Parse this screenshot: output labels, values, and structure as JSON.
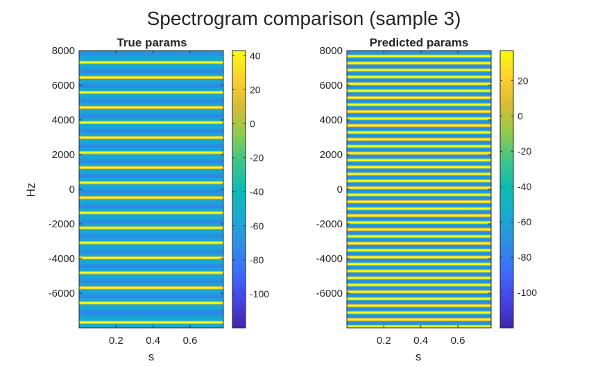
{
  "figure": {
    "title": "Spectrogram comparison (sample 3)"
  },
  "colormap": [
    "#3e26a8",
    "#4743e8",
    "#3d6bfb",
    "#2f8de4",
    "#1aaad0",
    "#0cbcb4",
    "#3cc58b",
    "#8dca4f",
    "#d8bb35",
    "#fbd02f",
    "#f9fb0e"
  ],
  "chart_data": [
    {
      "type": "heatmap",
      "title": "True params",
      "xlabel": "s",
      "ylabel": "Hz",
      "xlim": [
        0,
        0.78
      ],
      "ylim": [
        -8000,
        8000
      ],
      "xticks": [
        0.2,
        0.4,
        0.6
      ],
      "yticks": [
        -6000,
        -4000,
        -2000,
        0,
        2000,
        4000,
        6000,
        8000
      ],
      "harmonic_frequencies_hz": [
        -7680,
        -6560,
        -5690,
        -4820,
        -3960,
        -3090,
        -2230,
        -1360,
        -490,
        380,
        1250,
        2110,
        2980,
        3850,
        4720,
        5590,
        6450,
        7320
      ],
      "colorbar": {
        "clim": [
          -120,
          43
        ],
        "ticks": [
          -100,
          -80,
          -60,
          -40,
          -20,
          0,
          20,
          40
        ]
      }
    },
    {
      "type": "heatmap",
      "title": "Predicted params",
      "xlabel": "s",
      "ylabel": "",
      "xlim": [
        0,
        0.78
      ],
      "ylim": [
        -8000,
        8000
      ],
      "xticks": [
        0.2,
        0.4,
        0.6
      ],
      "yticks": [
        -6000,
        -4000,
        -2000,
        0,
        2000,
        4000,
        6000,
        8000
      ],
      "harmonic_frequencies_hz": [
        -7920,
        -7520,
        -7120,
        -6720,
        -6320,
        -5920,
        -5520,
        -5120,
        -4720,
        -4320,
        -3920,
        -3520,
        -3120,
        -2720,
        -2320,
        -1920,
        -1520,
        -1120,
        -720,
        -320,
        80,
        480,
        880,
        1280,
        1680,
        2080,
        2480,
        2880,
        3280,
        3680,
        4080,
        4480,
        4880,
        5280,
        5680,
        6080,
        6480,
        6880,
        7280,
        7680
      ],
      "colorbar": {
        "clim": [
          -120,
          37
        ],
        "ticks": [
          -100,
          -80,
          -60,
          -40,
          -20,
          0,
          20
        ]
      }
    }
  ]
}
